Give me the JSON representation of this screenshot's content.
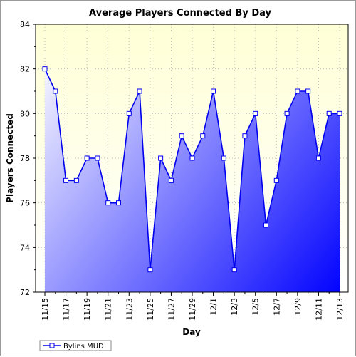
{
  "chart_data": {
    "type": "area",
    "title": "Average Players Connected By Day",
    "xlabel": "Day",
    "ylabel": "Players Connected",
    "ylim": [
      72,
      84
    ],
    "yticks": [
      72,
      74,
      76,
      78,
      80,
      82,
      84
    ],
    "grid": true,
    "legend_position": "bottom-left",
    "x": [
      "11/15",
      "11/16",
      "11/17",
      "11/18",
      "11/19",
      "11/20",
      "11/21",
      "11/22",
      "11/23",
      "11/24",
      "11/25",
      "11/26",
      "11/27",
      "11/28",
      "11/29",
      "11/30",
      "12/1",
      "12/2",
      "12/3",
      "12/4",
      "12/5",
      "12/6",
      "12/7",
      "12/8",
      "12/9",
      "12/10",
      "12/11",
      "12/12",
      "12/13"
    ],
    "xtick_labels": [
      "11/15",
      "11/17",
      "11/19",
      "11/21",
      "11/23",
      "11/25",
      "11/27",
      "11/29",
      "12/1",
      "12/3",
      "12/5",
      "12/7",
      "12/9",
      "12/11",
      "12/13"
    ],
    "series": [
      {
        "name": "Bylins MUD",
        "color": "#0000ee",
        "values": [
          82,
          81,
          77,
          77,
          78,
          78,
          76,
          76,
          80,
          81,
          73,
          78,
          77,
          79,
          78,
          79,
          81,
          78,
          73,
          79,
          80,
          75,
          77,
          80,
          81,
          81,
          78,
          80,
          80
        ]
      }
    ]
  },
  "colors": {
    "plot_bg_top": "#ffffd6",
    "plot_bg_bottom": "#ffffff",
    "fill_start": "#f2f2ff",
    "fill_end": "#0000ff",
    "line": "#0000ee"
  }
}
